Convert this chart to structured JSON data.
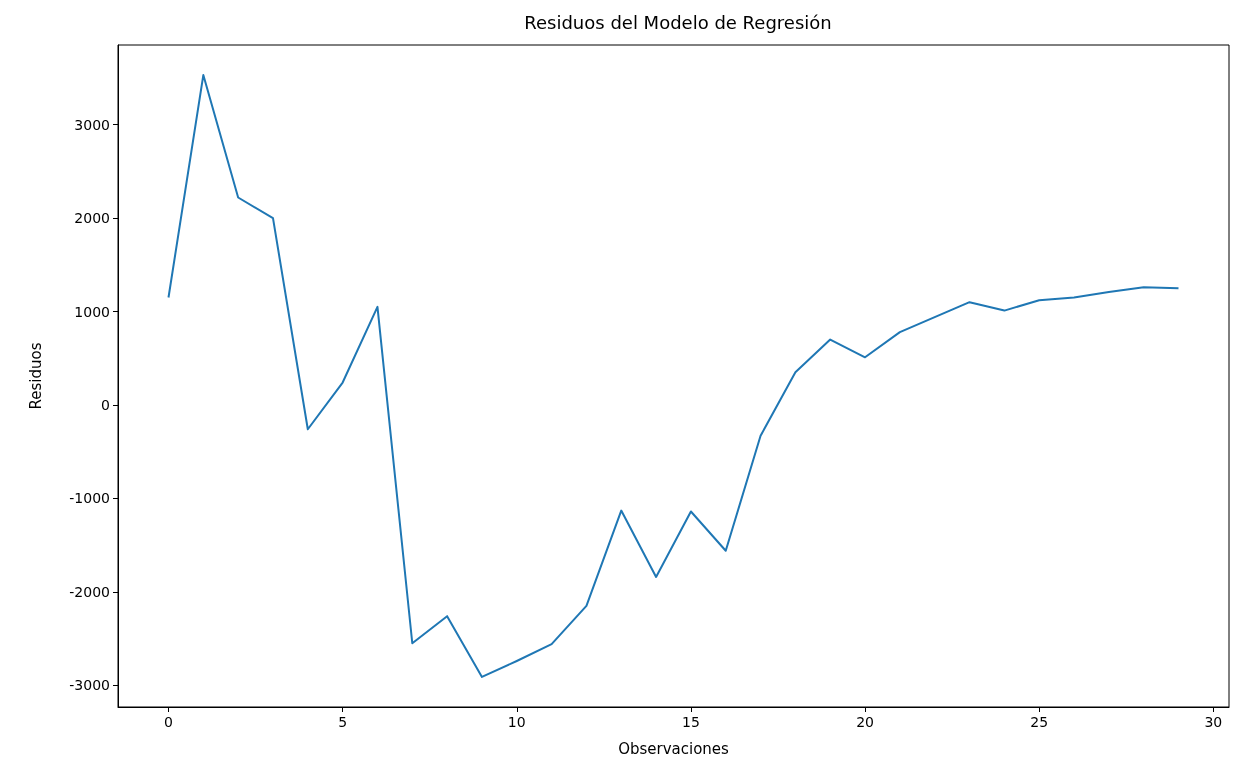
{
  "chart_data": {
    "type": "line",
    "title": "Residuos del Modelo de Regresión",
    "xlabel": "Observaciones",
    "ylabel": "Residuos",
    "x": [
      0,
      1,
      2,
      3,
      4,
      5,
      6,
      7,
      8,
      9,
      10,
      11,
      12,
      13,
      14,
      15,
      16,
      17,
      18,
      19,
      20,
      21,
      22,
      23,
      24,
      25,
      26,
      27,
      28,
      29
    ],
    "series": [
      {
        "color": "#1f77b4",
        "values": [
          1150,
          3530,
          2220,
          2000,
          -260,
          240,
          1050,
          -2550,
          -2260,
          -2910,
          -2740,
          -2560,
          -2150,
          -1130,
          -1840,
          -1140,
          -1560,
          -330,
          350,
          700,
          510,
          780,
          940,
          1100,
          1010,
          1120,
          1150,
          1210,
          1260,
          1250
        ]
      }
    ],
    "xlim": [
      -1.45,
      30.45
    ],
    "ylim": [
      -3232,
      3852
    ],
    "xticks": [
      0,
      5,
      10,
      15,
      20,
      25,
      30
    ],
    "yticks": [
      -3000,
      -2000,
      -1000,
      0,
      1000,
      2000,
      3000
    ],
    "marker": "none",
    "line_style": "solid"
  }
}
